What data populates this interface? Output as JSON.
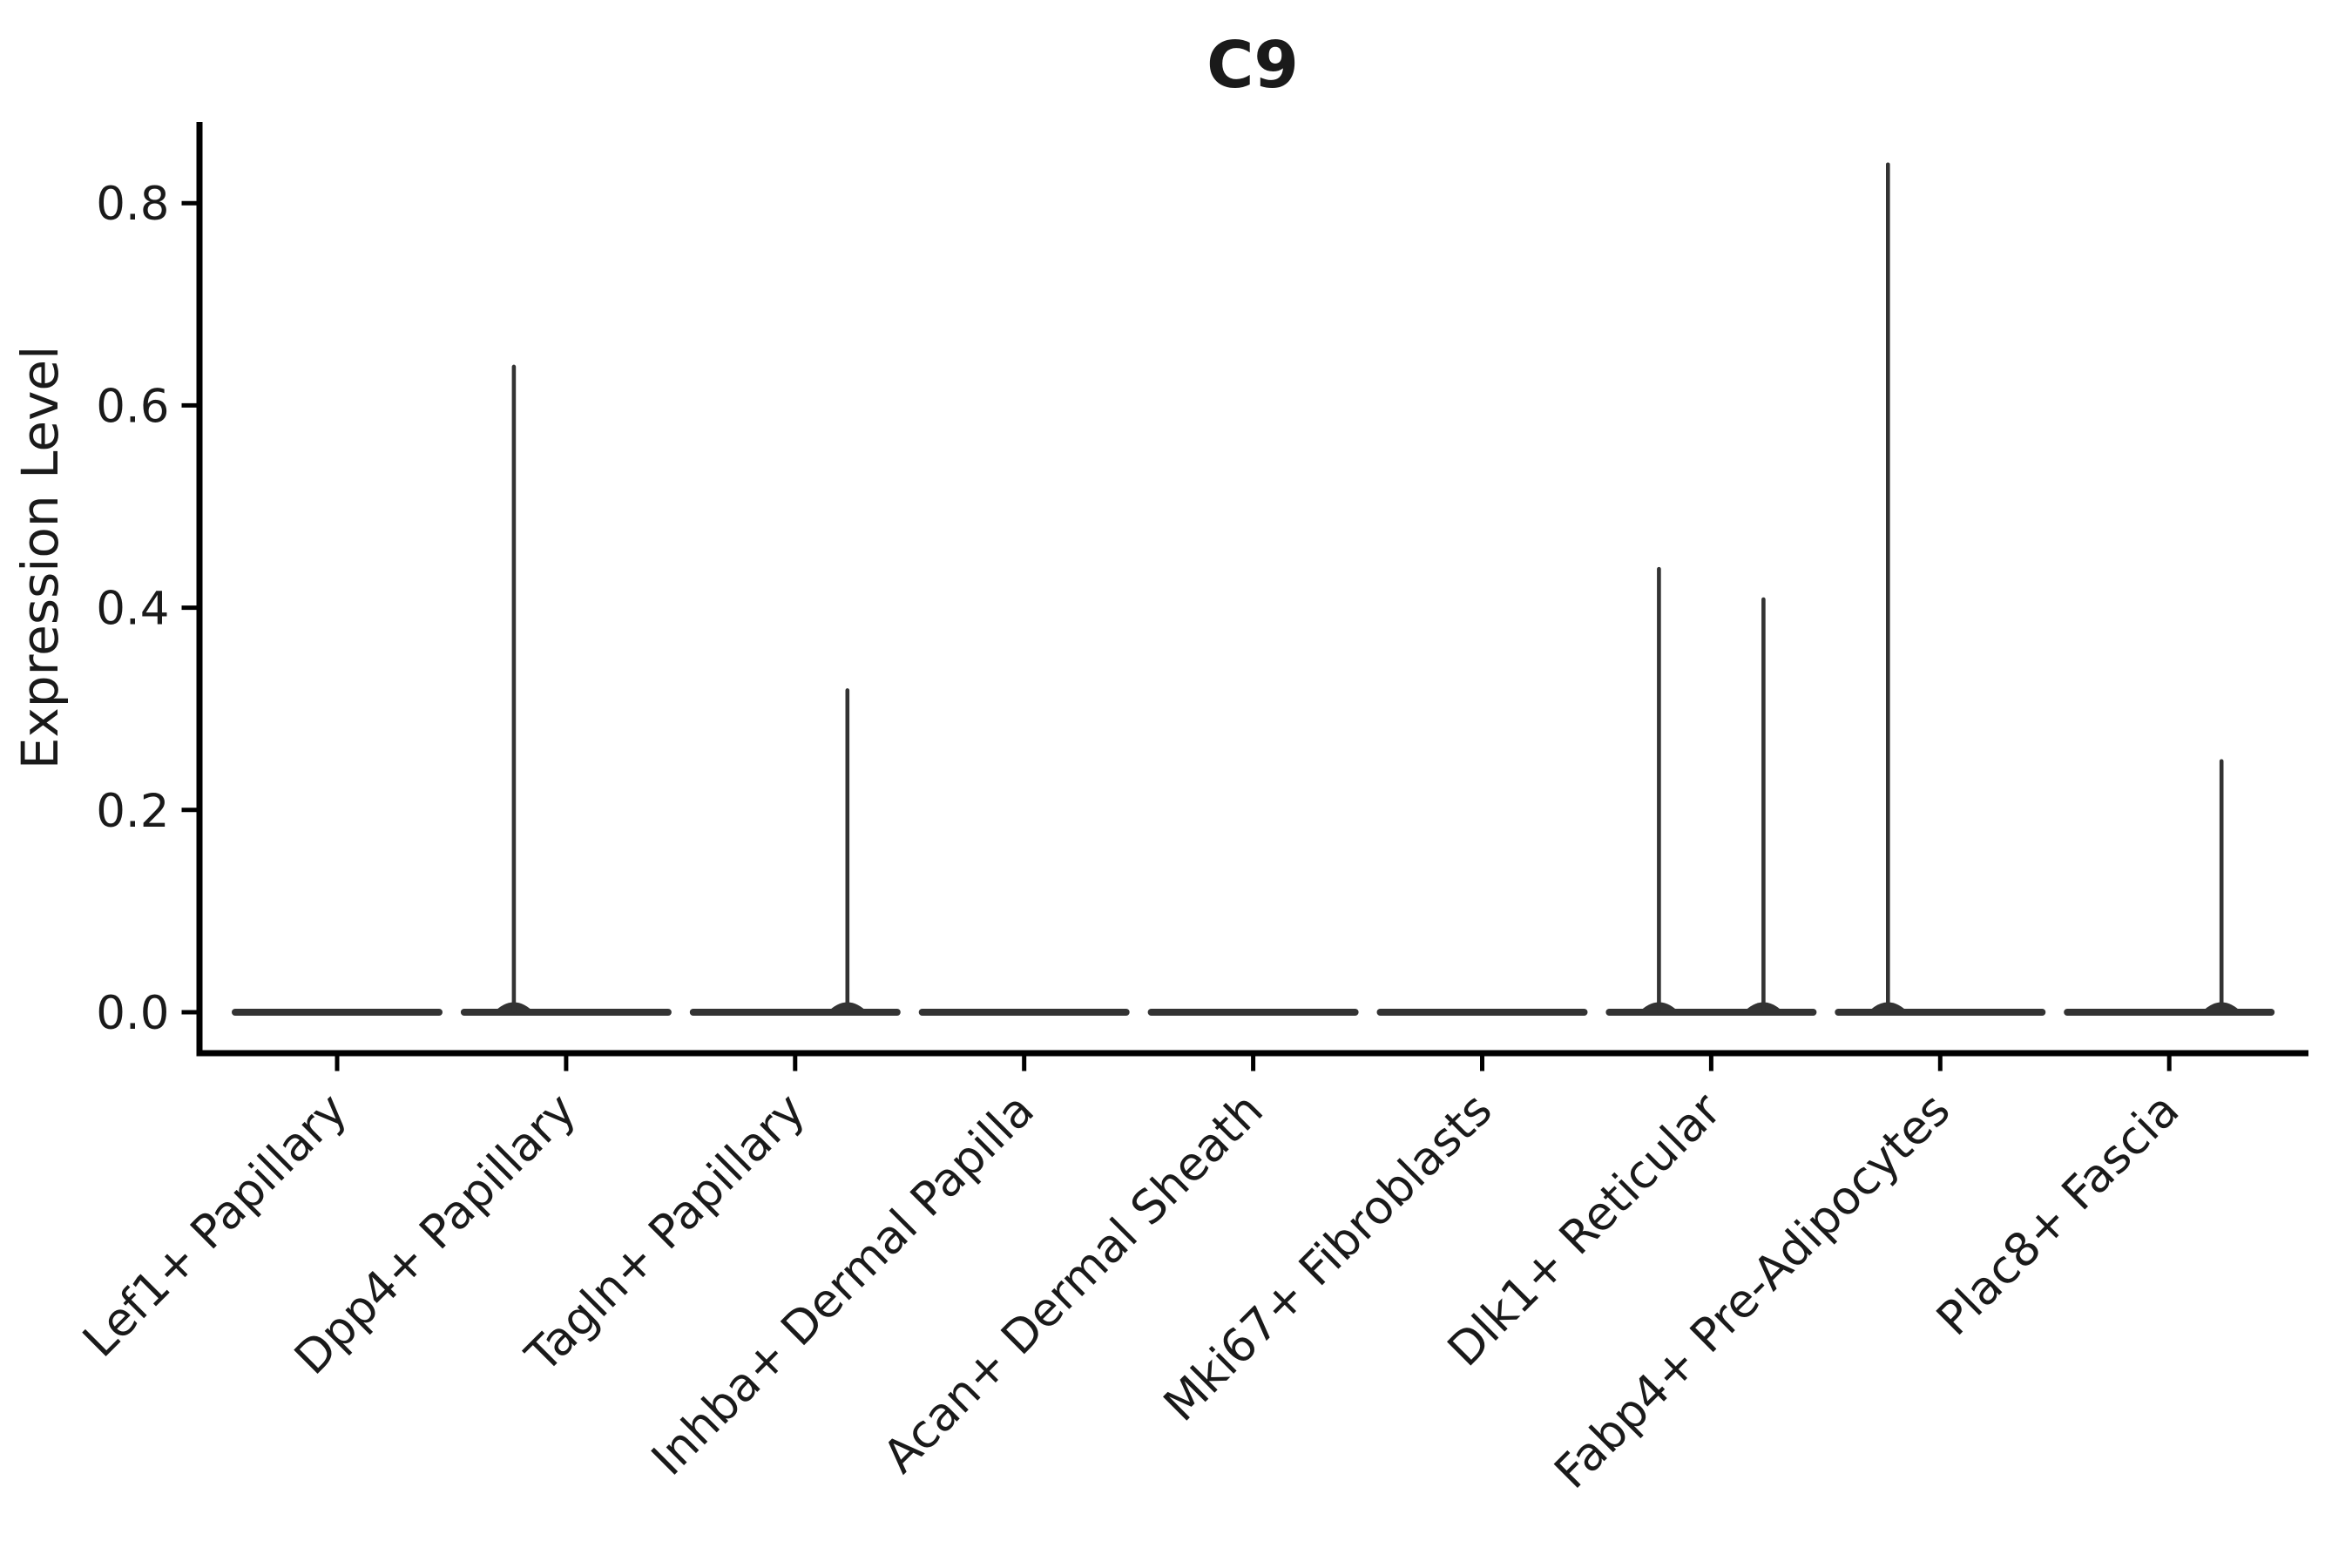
{
  "figure": {
    "title": "C9"
  },
  "chart_data": {
    "type": "violin",
    "title": "C9",
    "xlabel": "",
    "ylabel": "Expression Level",
    "ylim": [
      0,
      0.88
    ],
    "yticks": [
      0.0,
      0.2,
      0.4,
      0.6,
      0.8
    ],
    "ytick_labels": [
      "0.0",
      "0.2",
      "0.4",
      "0.6",
      "0.8"
    ],
    "grid": false,
    "legend_position": "none",
    "categories": [
      "Lef1+ Papillary",
      "Dpp4+ Papillary",
      "Tagln+ Papillary",
      "Inhba+ Dermal Papilla",
      "Acan+ Dermal Sheath",
      "Mki67+ Fibroblasts",
      "Dlk1+ Reticular",
      "Fabp4+ Pre-Adipocytes",
      "Plac8+ Fascia"
    ],
    "violins": [
      {
        "category": "Lef1+ Papillary",
        "baseline_value": 0.0,
        "spikes": []
      },
      {
        "category": "Dpp4+ Papillary",
        "baseline_value": 0.0,
        "spikes": [
          {
            "side": "left",
            "max_expression": 0.64
          }
        ]
      },
      {
        "category": "Tagln+ Papillary",
        "baseline_value": 0.0,
        "spikes": [
          {
            "side": "right",
            "max_expression": 0.32
          }
        ]
      },
      {
        "category": "Inhba+ Dermal Papilla",
        "baseline_value": 0.0,
        "spikes": []
      },
      {
        "category": "Acan+ Dermal Sheath",
        "baseline_value": 0.0,
        "spikes": []
      },
      {
        "category": "Mki67+ Fibroblasts",
        "baseline_value": 0.0,
        "spikes": []
      },
      {
        "category": "Dlk1+ Reticular",
        "baseline_value": 0.0,
        "spikes": [
          {
            "side": "left",
            "max_expression": 0.44
          },
          {
            "side": "right",
            "max_expression": 0.41
          }
        ]
      },
      {
        "category": "Fabp4+ Pre-Adipocytes",
        "baseline_value": 0.0,
        "spikes": [
          {
            "side": "left",
            "max_expression": 0.84
          }
        ]
      },
      {
        "category": "Plac8+ Fascia",
        "baseline_value": 0.0,
        "spikes": [
          {
            "side": "right",
            "max_expression": 0.25
          }
        ]
      }
    ],
    "colors": {
      "violin": "#333333",
      "axis": "#000000",
      "text": "#1a1a1a",
      "background": "#ffffff"
    }
  }
}
